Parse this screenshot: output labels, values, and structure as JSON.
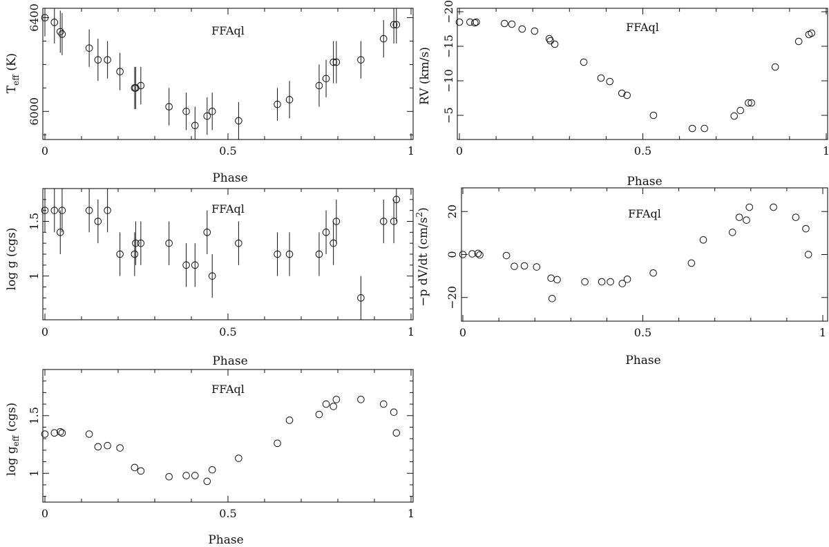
{
  "chart_data": [
    {
      "id": "teff",
      "type": "scatter",
      "title": "FFAql",
      "xlabel": "Phase",
      "ylabel": "T",
      "ylabel_sub": "eff",
      "ylabel_rest": " (K)",
      "xlim": [
        0,
        1
      ],
      "ylim": [
        5880,
        6440
      ],
      "xticks": [
        0,
        0.5,
        1
      ],
      "xtick_labels": [
        "0",
        "0.5",
        "1"
      ],
      "yticks": [
        6000,
        6400
      ],
      "ytick_labels": [
        "6000",
        "6400"
      ],
      "yminor": [
        5900,
        6100,
        6200,
        6300
      ],
      "invert_y": false,
      "error_bars": true,
      "x": [
        0.0,
        0.026,
        0.042,
        0.047,
        0.121,
        0.145,
        0.171,
        0.205,
        0.245,
        0.248,
        0.262,
        0.339,
        0.386,
        0.41,
        0.443,
        0.457,
        0.529,
        0.635,
        0.668,
        0.749,
        0.768,
        0.788,
        0.796,
        0.863,
        0.925,
        0.953,
        0.96
      ],
      "y": [
        6400,
        6380,
        6340,
        6330,
        6270,
        6220,
        6220,
        6170,
        6100,
        6100,
        6110,
        6020,
        6000,
        5940,
        5980,
        6000,
        5960,
        6030,
        6050,
        6110,
        6140,
        6210,
        6210,
        6220,
        6310,
        6370,
        6370
      ],
      "yerr": [
        80,
        90,
        90,
        90,
        80,
        90,
        80,
        80,
        90,
        90,
        80,
        80,
        80,
        80,
        80,
        80,
        80,
        70,
        80,
        90,
        80,
        90,
        90,
        80,
        80,
        80,
        80
      ]
    },
    {
      "id": "rv",
      "type": "scatter",
      "title": "FFAql",
      "xlabel": "Phase",
      "ylabel": "RV (km/s)",
      "xlim": [
        0,
        1
      ],
      "ylim": [
        -20.5,
        -1.5
      ],
      "xticks": [
        0,
        0.5,
        1
      ],
      "xtick_labels": [
        "0",
        "0.5",
        "1"
      ],
      "yticks": [
        -20,
        -15,
        -10,
        -5
      ],
      "ytick_labels": [
        "−20",
        "−15",
        "−10",
        "−5"
      ],
      "invert_y": true,
      "error_bars": false,
      "x": [
        0.0,
        0.029,
        0.042,
        0.046,
        0.123,
        0.143,
        0.171,
        0.205,
        0.245,
        0.248,
        0.26,
        0.339,
        0.386,
        0.41,
        0.443,
        0.457,
        0.529,
        0.635,
        0.668,
        0.749,
        0.766,
        0.788,
        0.796,
        0.861,
        0.925,
        0.953,
        0.96
      ],
      "y": [
        -18.5,
        -18.5,
        -18.4,
        -18.5,
        -18.3,
        -18.2,
        -17.5,
        -17.2,
        -16.1,
        -15.8,
        -15.3,
        -12.7,
        -10.4,
        -9.9,
        -8.2,
        -7.9,
        -5.0,
        -3.1,
        -3.1,
        -4.9,
        -5.7,
        -6.8,
        -6.8,
        -12.0,
        -15.7,
        -16.7,
        -16.9
      ]
    },
    {
      "id": "logg",
      "type": "scatter",
      "title": "FFAql",
      "xlabel": "Phase",
      "ylabel": "log g (cgs)",
      "xlim": [
        0,
        1
      ],
      "ylim": [
        0.6,
        1.8
      ],
      "xticks": [
        0,
        0.5,
        1
      ],
      "xtick_labels": [
        "0",
        "0.5",
        "1"
      ],
      "yticks": [
        1,
        1.5
      ],
      "ytick_labels": [
        "1",
        "1.5"
      ],
      "yminor": [
        0.7,
        0.8,
        0.9,
        1.1,
        1.2,
        1.3,
        1.4,
        1.6,
        1.7
      ],
      "invert_y": false,
      "error_bars": true,
      "x": [
        0.0,
        0.026,
        0.042,
        0.047,
        0.121,
        0.145,
        0.171,
        0.205,
        0.245,
        0.248,
        0.262,
        0.339,
        0.386,
        0.41,
        0.443,
        0.457,
        0.529,
        0.635,
        0.668,
        0.749,
        0.768,
        0.788,
        0.796,
        0.863,
        0.925,
        0.953,
        0.96
      ],
      "y": [
        1.6,
        1.6,
        1.4,
        1.6,
        1.6,
        1.5,
        1.6,
        1.2,
        1.2,
        1.3,
        1.3,
        1.3,
        1.1,
        1.1,
        1.4,
        1.0,
        1.3,
        1.2,
        1.2,
        1.2,
        1.4,
        1.3,
        1.5,
        0.8,
        1.5,
        1.5,
        1.7
      ],
      "yerr": [
        0.2,
        0.2,
        0.2,
        0.2,
        0.2,
        0.2,
        0.2,
        0.2,
        0.2,
        0.2,
        0.2,
        0.2,
        0.2,
        0.2,
        0.2,
        0.2,
        0.2,
        0.2,
        0.2,
        0.2,
        0.2,
        0.2,
        0.2,
        0.2,
        0.2,
        0.2,
        0.2
      ]
    },
    {
      "id": "accel",
      "type": "scatter",
      "title": "FFAql",
      "xlabel": "Phase",
      "ylabel": "−p dV/dt (cm/s",
      "ylabel_sup": "2",
      "ylabel_rest": ")",
      "xlim": [
        0,
        1
      ],
      "ylim": [
        -31,
        31
      ],
      "xticks": [
        0,
        0.5,
        1
      ],
      "xtick_labels": [
        "0",
        "0.5",
        "1"
      ],
      "yticks": [
        -20,
        0,
        20
      ],
      "ytick_labels": [
        "−20",
        "0",
        "20"
      ],
      "invert_y": false,
      "error_bars": false,
      "x": [
        0.0,
        0.026,
        0.042,
        0.047,
        0.121,
        0.143,
        0.171,
        0.205,
        0.245,
        0.248,
        0.262,
        0.339,
        0.386,
        0.41,
        0.443,
        0.457,
        0.529,
        0.635,
        0.668,
        0.749,
        0.768,
        0.788,
        0.796,
        0.863,
        0.925,
        0.953,
        0.96
      ],
      "y": [
        0,
        0.3,
        0.5,
        -0.2,
        -0.5,
        -5.5,
        -5.3,
        -5.8,
        -11,
        -20.5,
        -11.7,
        -12.7,
        -12.7,
        -12.7,
        -13.5,
        -11.5,
        -8.6,
        -4.0,
        6.8,
        10.3,
        17.3,
        16.0,
        22.0,
        22.0,
        17.3,
        12.0,
        0
      ]
    },
    {
      "id": "loggeff",
      "type": "scatter",
      "title": "FFAql",
      "xlabel": "Phase",
      "ylabel": "log g",
      "ylabel_sub": "eff",
      "ylabel_rest": " (cgs)",
      "xlim": [
        0,
        1
      ],
      "ylim": [
        0.75,
        1.9
      ],
      "xticks": [
        0,
        0.5,
        1
      ],
      "xtick_labels": [
        "0",
        "0.5",
        "1"
      ],
      "yticks": [
        1,
        1.5
      ],
      "ytick_labels": [
        "1",
        "1.5"
      ],
      "yminor": [
        0.8,
        0.9,
        1.1,
        1.2,
        1.3,
        1.4,
        1.6,
        1.7,
        1.8
      ],
      "invert_y": false,
      "error_bars": false,
      "x": [
        0.0,
        0.026,
        0.042,
        0.047,
        0.121,
        0.145,
        0.171,
        0.205,
        0.245,
        0.262,
        0.339,
        0.386,
        0.41,
        0.443,
        0.457,
        0.529,
        0.635,
        0.668,
        0.749,
        0.768,
        0.788,
        0.796,
        0.863,
        0.925,
        0.953,
        0.96
      ],
      "y": [
        1.34,
        1.35,
        1.36,
        1.35,
        1.34,
        1.23,
        1.24,
        1.22,
        1.05,
        1.02,
        0.97,
        0.98,
        0.98,
        0.93,
        1.03,
        1.13,
        1.26,
        1.46,
        1.51,
        1.6,
        1.58,
        1.64,
        1.64,
        1.6,
        1.53,
        1.35
      ]
    }
  ]
}
